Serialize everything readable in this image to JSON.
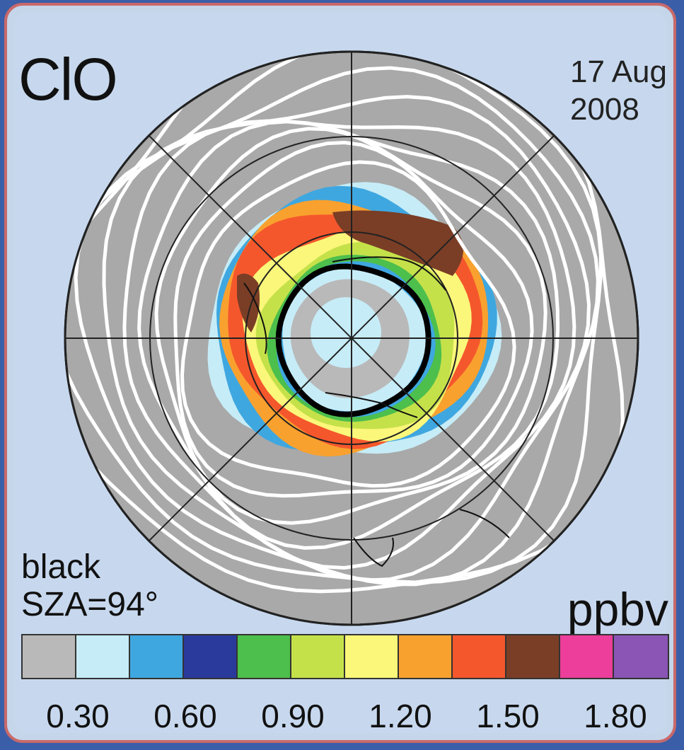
{
  "map": {
    "title": "ClO",
    "date_line1": "17 Aug",
    "date_line2": "2008",
    "note_line1": "black",
    "note_line2": "SZA=94°",
    "unit": "ppbv",
    "projection": "south-polar-stereographic",
    "land_color": "#a9a9a9",
    "contour_color": "#ffffff",
    "terminator_color": "#000000"
  },
  "colorbar": {
    "colors": [
      "#b9b9b9",
      "#c6ecf7",
      "#3fa7e0",
      "#2a3a9c",
      "#4dbf4c",
      "#c5e14a",
      "#fbf77a",
      "#f9a12f",
      "#f5572c",
      "#7a3e26",
      "#ec3e9a",
      "#8a55b5"
    ],
    "tick_labels": [
      "0.30",
      "0.60",
      "0.90",
      "1.20",
      "1.50",
      "1.80"
    ],
    "tick_values": [
      0.3,
      0.6,
      0.9,
      1.2,
      1.5,
      1.8
    ],
    "min": 0.15,
    "step": 0.15
  }
}
